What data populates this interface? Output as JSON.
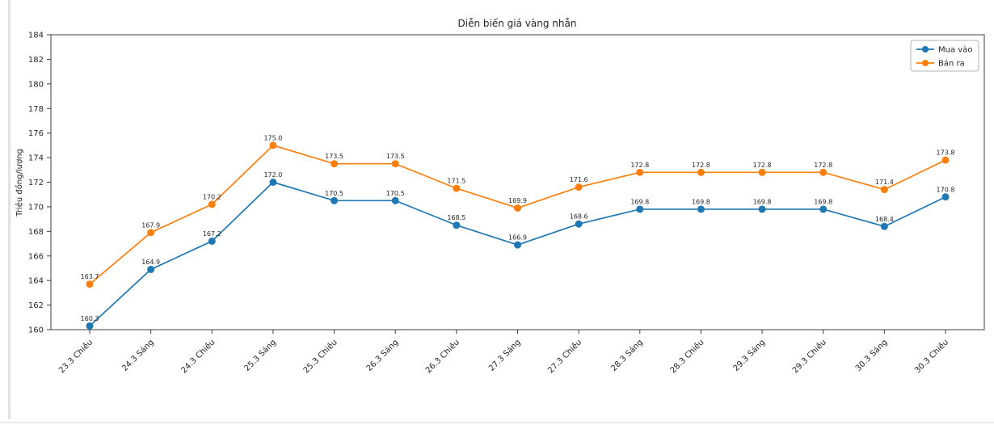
{
  "chart_data": {
    "type": "line",
    "title": "Diễn biến giá vàng nhẫn",
    "xlabel": "",
    "ylabel": "Triệu đồng/lượng",
    "categories": [
      "23.3 Chiều",
      "24.3 Sáng",
      "24.3 Chiều",
      "25.3 Sáng",
      "25.3 Chiều",
      "26.3 Sáng",
      "26.3 Chiều",
      "27.3 Sáng",
      "27.3 Chiều",
      "28.3 Sáng",
      "28.3 Chiều",
      "29.3 Sáng",
      "29.3 Chiều",
      "30.3 Sáng",
      "30.3 Chiều"
    ],
    "series": [
      {
        "name": "Mua vào",
        "color": "#1f77b4",
        "values": [
          160.3,
          164.9,
          167.2,
          172.0,
          170.5,
          170.5,
          168.5,
          166.9,
          168.6,
          169.8,
          169.8,
          169.8,
          169.8,
          168.4,
          170.8
        ]
      },
      {
        "name": "Bán ra",
        "color": "#ff7f0e",
        "values": [
          163.7,
          167.9,
          170.2,
          175.0,
          173.5,
          173.5,
          171.5,
          169.9,
          171.6,
          172.8,
          172.8,
          172.8,
          172.8,
          171.4,
          173.8
        ]
      }
    ],
    "ylim": [
      160,
      184
    ],
    "ytick_step": 2,
    "grid": false,
    "legend_position": "upper right",
    "marker": "circle",
    "x_tick_rotation": 45,
    "point_labels_decimals": 1
  },
  "style": {
    "spine_color": "#3c3c3c",
    "tick_label_color": "#262626",
    "point_label_color": "#1f1f1f",
    "legend_border_color": "#b3b3b3",
    "page_border_color": "#e3e3e3"
  }
}
